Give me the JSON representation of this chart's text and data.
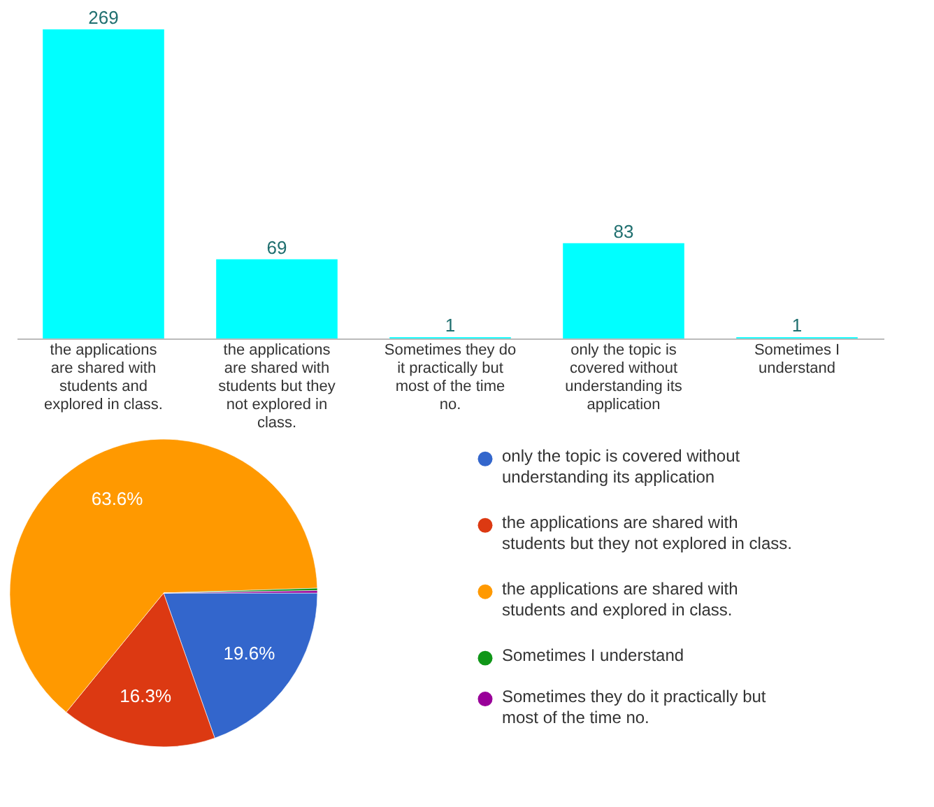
{
  "chart_data": [
    {
      "type": "bar",
      "categories": [
        "the applications are shared with students and explored in class.",
        "the applications are shared with students but they not explored in class.",
        "Sometimes they do it practically but most of the time no.",
        "only the topic is covered without understanding its application",
        "Sometimes I understand"
      ],
      "values": [
        269,
        69,
        1,
        83,
        1
      ],
      "color": "#00ffff",
      "data_labels": true,
      "tick_labels": "x"
    },
    {
      "type": "pie",
      "categories": [
        "only the topic is covered without understanding its application",
        "the applications are shared with students but they not explored in class.",
        "the applications are shared with students and explored in class.",
        "Sometimes I understand",
        "Sometimes they do it practically but most of the time no."
      ],
      "values": [
        19.6,
        16.3,
        63.6,
        0.25,
        0.25
      ],
      "colors": [
        "#3366cc",
        "#dc3912",
        "#ff9900",
        "#109618",
        "#990099"
      ],
      "value_labels": [
        "19.6%",
        "16.3%",
        "63.6%",
        null,
        null
      ],
      "legend": "right"
    }
  ]
}
